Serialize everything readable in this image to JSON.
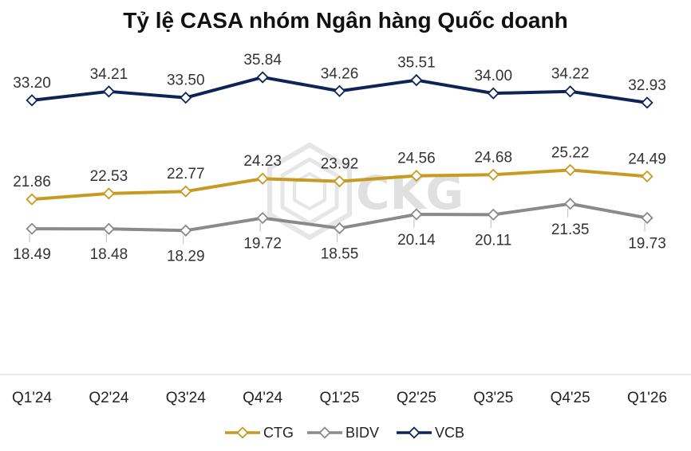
{
  "chart_data": {
    "type": "line",
    "title": "Tỷ lệ CASA nhóm Ngân hàng Quốc doanh",
    "categories": [
      "Q1'24",
      "Q2'24",
      "Q3'24",
      "Q4'24",
      "Q1'25",
      "Q2'25",
      "Q3'25",
      "Q4'25",
      "Q1'26"
    ],
    "series": [
      {
        "name": "CTG",
        "color": "#c79a22",
        "values": [
          21.86,
          22.53,
          22.77,
          24.23,
          23.92,
          24.56,
          24.68,
          25.22,
          24.49
        ],
        "labels": [
          "21.86",
          "22.53",
          "22.77",
          "24.23",
          "23.92",
          "24.56",
          "24.68",
          "25.22",
          "24.49"
        ],
        "label_position": "above"
      },
      {
        "name": "BIDV",
        "color": "#8a8a8a",
        "values": [
          18.49,
          18.48,
          18.29,
          19.72,
          18.55,
          20.14,
          20.11,
          21.35,
          19.73
        ],
        "labels": [
          "18.49",
          "18.48",
          "18.29",
          "19.72",
          "18.55",
          "20.14",
          "20.11",
          "21.35",
          "19.73"
        ],
        "label_position": "below"
      },
      {
        "name": "VCB",
        "color": "#0f2456",
        "values": [
          33.2,
          34.21,
          33.5,
          35.84,
          34.26,
          35.51,
          34.0,
          34.22,
          32.93
        ],
        "labels": [
          "33.20",
          "34.21",
          "33.50",
          "35.84",
          "34.26",
          "35.51",
          "34.00",
          "34.22",
          "32.93"
        ],
        "label_position": "above"
      }
    ],
    "legend_position": "bottom",
    "grid": false,
    "watermark": "CKG"
  }
}
